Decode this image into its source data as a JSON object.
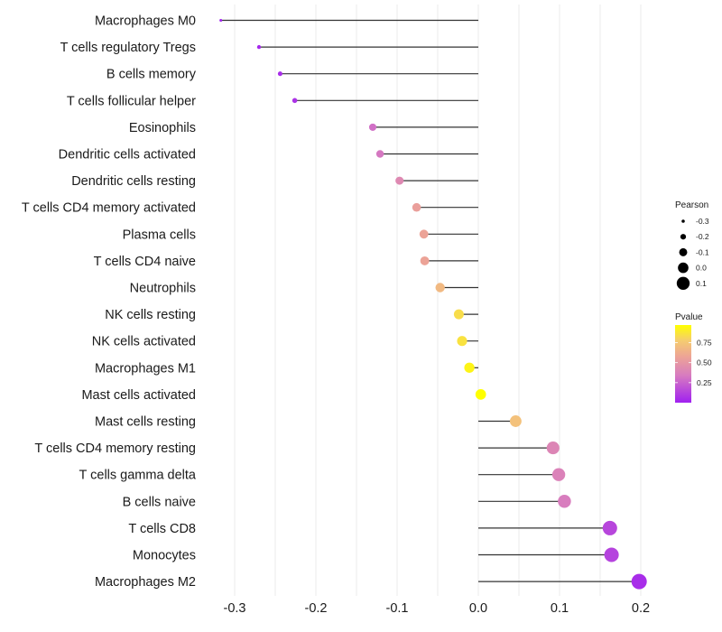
{
  "chart_data": {
    "type": "lollipop",
    "title": "",
    "xlabel": "",
    "ylabel": "",
    "xlim": [
      -0.33,
      0.2
    ],
    "xticks": [
      -0.3,
      -0.2,
      -0.1,
      0.0,
      0.1,
      0.2
    ],
    "xtick_labels": [
      "-0.3",
      "-0.2",
      "-0.1",
      "0.0",
      "0.1",
      "0.2"
    ],
    "grid": true,
    "categories": [
      "Macrophages M0",
      "T cells regulatory  Tregs ",
      "B cells memory",
      "T cells follicular helper",
      "Eosinophils",
      "Dendritic cells activated",
      "Dendritic cells resting",
      "T cells CD4 memory activated",
      "Plasma cells",
      "T cells CD4 naive",
      "Neutrophils",
      "NK cells resting",
      "NK cells activated",
      "Macrophages M1",
      "Mast cells activated",
      "Mast cells resting",
      "T cells CD4 memory resting",
      "T cells gamma delta",
      "B cells naive",
      "T cells CD8",
      "Monocytes",
      "Macrophages M2"
    ],
    "pearson": [
      -0.317,
      -0.27,
      -0.244,
      -0.226,
      -0.13,
      -0.121,
      -0.097,
      -0.076,
      -0.067,
      -0.066,
      -0.047,
      -0.024,
      -0.02,
      -0.011,
      0.003,
      0.046,
      0.092,
      0.099,
      0.106,
      0.162,
      0.164,
      0.198
    ],
    "pvalue": [
      0.01,
      0.03,
      0.05,
      0.07,
      0.3,
      0.33,
      0.42,
      0.55,
      0.57,
      0.57,
      0.68,
      0.84,
      0.86,
      0.93,
      0.99,
      0.72,
      0.4,
      0.38,
      0.35,
      0.14,
      0.13,
      0.05
    ],
    "legend": {
      "size": {
        "title": "Pearson",
        "values": [
          -0.3,
          -0.2,
          -0.1,
          0.0,
          0.1
        ],
        "labels": [
          "-0.3",
          "-0.2",
          "-0.1",
          "0.0",
          "0.1"
        ]
      },
      "color": {
        "title": "Pvalue",
        "range": [
          0.0,
          0.97
        ],
        "ticks": [
          0.25,
          0.5,
          0.75
        ],
        "tick_labels": [
          "0.25",
          "0.50",
          "0.75"
        ],
        "low_color": "#A020F0",
        "mid_color": "#E59AA8",
        "high_color": "#FFFF00"
      },
      "position": "right"
    }
  }
}
